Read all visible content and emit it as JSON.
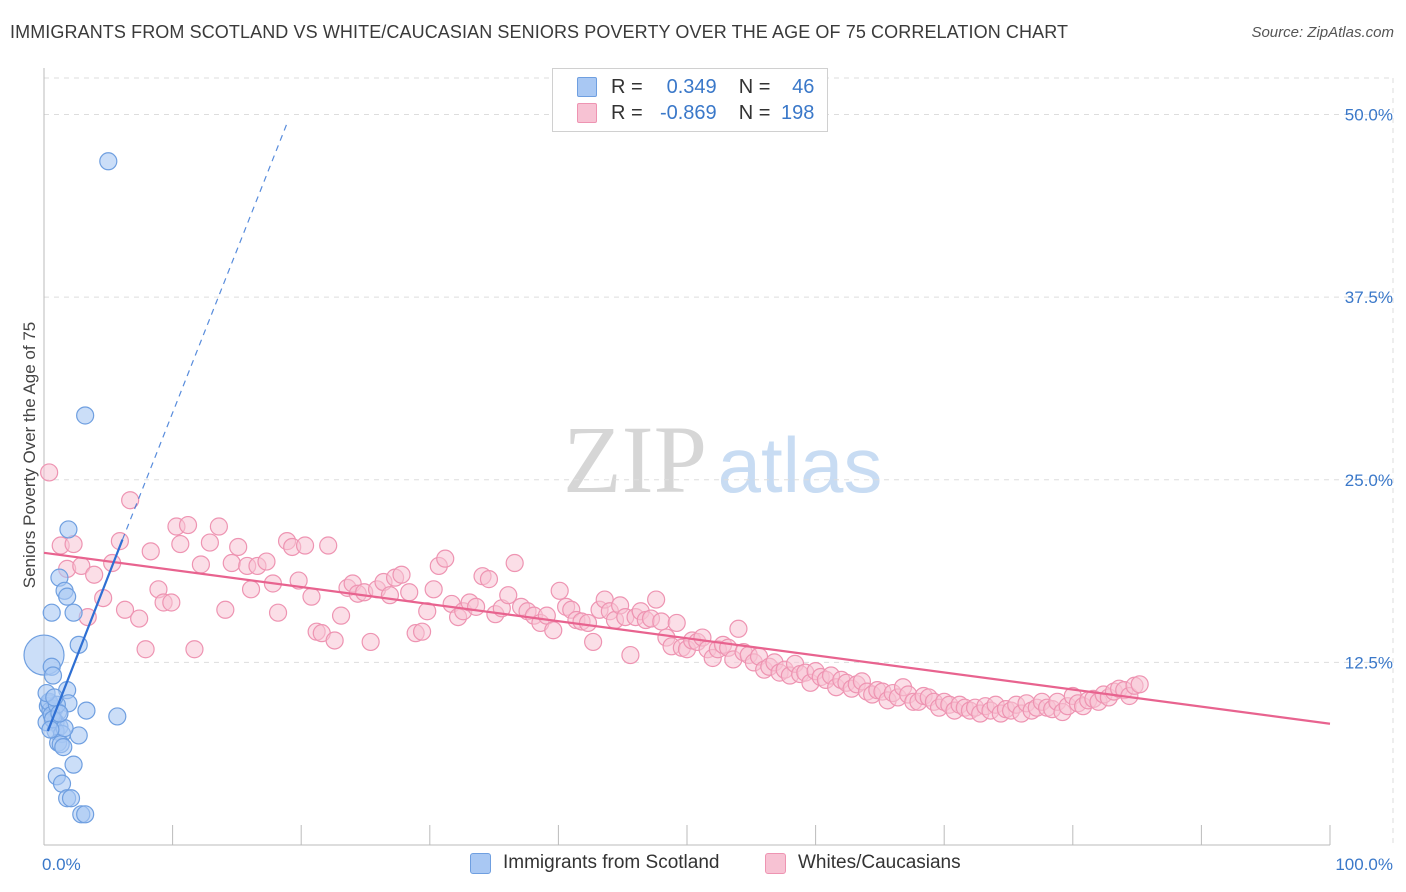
{
  "title": "IMMIGRANTS FROM SCOTLAND VS WHITE/CAUCASIAN SENIORS POVERTY OVER THE AGE OF 75 CORRELATION CHART",
  "source": "Source: ZipAtlas.com",
  "watermark": {
    "zip": "ZIP",
    "atlas": "atlas"
  },
  "legend_top": {
    "r_label": "R =",
    "n_label": "N =",
    "rows": [
      {
        "r": "0.349",
        "n": "46",
        "color": "#7aaef0"
      },
      {
        "r": "-0.869",
        "n": "198",
        "color": "#f29ab8"
      }
    ]
  },
  "colors": {
    "blue_fill": "#a9c8f3",
    "blue_stroke": "#6f9fe0",
    "blue_line": "#2e6fd3",
    "pink_fill": "#f7c2d3",
    "pink_stroke": "#ee94b2",
    "pink_line": "#e8638f",
    "tick_text": "#3a78c9",
    "grid": "#dddddd"
  },
  "chart_data": {
    "type": "scatter",
    "title": "IMMIGRANTS FROM SCOTLAND VS WHITE/CAUCASIAN SENIORS POVERTY OVER THE AGE OF 75 CORRELATION CHART",
    "xlabel": "",
    "ylabel": "Seniors Poverty Over the Age of 75",
    "xlim": [
      0,
      100
    ],
    "ylim": [
      0,
      52.5
    ],
    "x_tick_labels": [
      "0.0%",
      "100.0%"
    ],
    "y_ticks": [
      12.5,
      25.0,
      37.5,
      50.0
    ],
    "y_tick_labels": [
      "12.5%",
      "25.0%",
      "37.5%",
      "50.0%"
    ],
    "grid": true,
    "series": [
      {
        "name": "Immigrants from Scotland",
        "color": "#a9c8f3",
        "points": [
          [
            5.0,
            46.8
          ],
          [
            3.2,
            29.4
          ],
          [
            1.9,
            21.6
          ],
          [
            1.2,
            18.3
          ],
          [
            1.6,
            17.4
          ],
          [
            1.8,
            17.0
          ],
          [
            0.6,
            15.9
          ],
          [
            2.3,
            15.9
          ],
          [
            2.7,
            13.7
          ],
          [
            0.0,
            13.0
          ],
          [
            0.6,
            12.2
          ],
          [
            0.7,
            11.6
          ],
          [
            1.8,
            10.6
          ],
          [
            1.9,
            9.7
          ],
          [
            0.4,
            9.7
          ],
          [
            0.3,
            9.5
          ],
          [
            0.8,
            9.3
          ],
          [
            0.5,
            9.2
          ],
          [
            1.1,
            9.1
          ],
          [
            3.3,
            9.2
          ],
          [
            5.7,
            8.8
          ],
          [
            0.9,
            8.4
          ],
          [
            1.2,
            8.1
          ],
          [
            0.2,
            8.4
          ],
          [
            0.9,
            7.8
          ],
          [
            1.4,
            7.6
          ],
          [
            2.7,
            7.5
          ],
          [
            1.1,
            7.0
          ],
          [
            1.3,
            6.9
          ],
          [
            1.5,
            6.7
          ],
          [
            2.3,
            5.5
          ],
          [
            1.0,
            4.7
          ],
          [
            1.4,
            4.2
          ],
          [
            1.8,
            3.2
          ],
          [
            2.1,
            3.2
          ],
          [
            2.9,
            2.1
          ],
          [
            3.2,
            2.1
          ],
          [
            0.4,
            9.8
          ],
          [
            0.6,
            8.9
          ],
          [
            1.0,
            9.6
          ],
          [
            0.2,
            10.4
          ],
          [
            0.7,
            8.6
          ],
          [
            1.6,
            8.0
          ],
          [
            0.5,
            7.9
          ],
          [
            1.2,
            9.0
          ],
          [
            0.8,
            10.1
          ]
        ],
        "trendline": {
          "x": [
            0.3,
            6.1
          ],
          "y": [
            7.8,
            20.9
          ],
          "extended_to": [
            18.9,
            49.4
          ]
        }
      },
      {
        "name": "Whites/Caucasians",
        "color": "#f7c2d3",
        "points": [
          [
            0.4,
            25.5
          ],
          [
            1.3,
            20.5
          ],
          [
            1.8,
            18.9
          ],
          [
            2.3,
            20.6
          ],
          [
            2.9,
            19.1
          ],
          [
            3.4,
            15.6
          ],
          [
            3.9,
            18.5
          ],
          [
            4.6,
            16.9
          ],
          [
            5.3,
            19.3
          ],
          [
            5.9,
            20.8
          ],
          [
            6.3,
            16.1
          ],
          [
            6.7,
            23.6
          ],
          [
            7.4,
            15.5
          ],
          [
            7.9,
            13.4
          ],
          [
            8.3,
            20.1
          ],
          [
            8.9,
            17.5
          ],
          [
            9.3,
            16.6
          ],
          [
            9.9,
            16.6
          ],
          [
            10.3,
            21.8
          ],
          [
            10.6,
            20.6
          ],
          [
            11.2,
            21.9
          ],
          [
            11.7,
            13.4
          ],
          [
            12.2,
            19.2
          ],
          [
            12.9,
            20.7
          ],
          [
            13.6,
            21.8
          ],
          [
            14.1,
            16.1
          ],
          [
            14.6,
            19.3
          ],
          [
            15.1,
            20.4
          ],
          [
            15.8,
            19.1
          ],
          [
            16.1,
            17.5
          ],
          [
            16.6,
            19.1
          ],
          [
            17.3,
            19.4
          ],
          [
            17.8,
            17.9
          ],
          [
            18.2,
            15.9
          ],
          [
            18.9,
            20.8
          ],
          [
            19.3,
            20.4
          ],
          [
            19.8,
            18.1
          ],
          [
            20.3,
            20.5
          ],
          [
            20.8,
            17.0
          ],
          [
            21.2,
            14.6
          ],
          [
            21.6,
            14.5
          ],
          [
            22.1,
            20.5
          ],
          [
            22.6,
            14.0
          ],
          [
            23.1,
            15.7
          ],
          [
            23.6,
            17.6
          ],
          [
            24.0,
            17.9
          ],
          [
            24.4,
            17.2
          ],
          [
            24.9,
            17.3
          ],
          [
            25.4,
            13.9
          ],
          [
            25.9,
            17.5
          ],
          [
            26.4,
            18.0
          ],
          [
            26.9,
            17.1
          ],
          [
            27.3,
            18.3
          ],
          [
            27.8,
            18.5
          ],
          [
            28.4,
            17.3
          ],
          [
            28.9,
            14.5
          ],
          [
            29.4,
            14.6
          ],
          [
            29.8,
            16.0
          ],
          [
            30.3,
            17.5
          ],
          [
            30.7,
            19.1
          ],
          [
            31.2,
            19.6
          ],
          [
            31.7,
            16.5
          ],
          [
            32.2,
            15.6
          ],
          [
            32.6,
            16.0
          ],
          [
            33.1,
            16.6
          ],
          [
            33.6,
            16.3
          ],
          [
            34.1,
            18.4
          ],
          [
            34.6,
            18.2
          ],
          [
            35.1,
            15.8
          ],
          [
            35.6,
            16.2
          ],
          [
            36.1,
            17.1
          ],
          [
            36.6,
            19.3
          ],
          [
            37.1,
            16.3
          ],
          [
            37.6,
            16.0
          ],
          [
            38.1,
            15.7
          ],
          [
            38.6,
            15.2
          ],
          [
            39.1,
            15.7
          ],
          [
            39.6,
            14.7
          ],
          [
            40.1,
            17.4
          ],
          [
            40.6,
            16.3
          ],
          [
            41.0,
            16.1
          ],
          [
            41.4,
            15.4
          ],
          [
            41.8,
            15.3
          ],
          [
            42.3,
            15.2
          ],
          [
            42.7,
            13.9
          ],
          [
            43.2,
            16.1
          ],
          [
            43.6,
            16.8
          ],
          [
            44.0,
            16.0
          ],
          [
            44.4,
            15.4
          ],
          [
            44.8,
            16.4
          ],
          [
            45.2,
            15.6
          ],
          [
            45.6,
            13.0
          ],
          [
            46.0,
            15.6
          ],
          [
            46.4,
            16.0
          ],
          [
            46.8,
            15.4
          ],
          [
            47.2,
            15.5
          ],
          [
            47.6,
            16.8
          ],
          [
            48.0,
            15.3
          ],
          [
            48.4,
            14.2
          ],
          [
            48.8,
            13.6
          ],
          [
            49.2,
            15.2
          ],
          [
            49.6,
            13.5
          ],
          [
            50.0,
            13.4
          ],
          [
            50.4,
            14.0
          ],
          [
            50.8,
            13.9
          ],
          [
            51.2,
            14.2
          ],
          [
            51.6,
            13.4
          ],
          [
            52.0,
            12.8
          ],
          [
            52.4,
            13.4
          ],
          [
            52.8,
            13.7
          ],
          [
            53.2,
            13.5
          ],
          [
            53.6,
            12.7
          ],
          [
            54.0,
            14.8
          ],
          [
            54.4,
            13.2
          ],
          [
            54.8,
            13.0
          ],
          [
            55.2,
            12.5
          ],
          [
            55.6,
            12.9
          ],
          [
            56.0,
            12.0
          ],
          [
            56.4,
            12.2
          ],
          [
            56.8,
            12.5
          ],
          [
            57.2,
            11.8
          ],
          [
            57.6,
            12.0
          ],
          [
            58.0,
            11.6
          ],
          [
            58.4,
            12.4
          ],
          [
            58.8,
            11.7
          ],
          [
            59.2,
            11.8
          ],
          [
            59.6,
            11.1
          ],
          [
            60.0,
            11.9
          ],
          [
            60.4,
            11.5
          ],
          [
            60.8,
            11.3
          ],
          [
            61.2,
            11.6
          ],
          [
            61.6,
            10.8
          ],
          [
            62.0,
            11.3
          ],
          [
            62.4,
            11.1
          ],
          [
            62.8,
            10.7
          ],
          [
            63.2,
            11.0
          ],
          [
            63.6,
            11.2
          ],
          [
            64.0,
            10.5
          ],
          [
            64.4,
            10.3
          ],
          [
            64.8,
            10.6
          ],
          [
            65.2,
            10.5
          ],
          [
            65.6,
            9.9
          ],
          [
            66.0,
            10.4
          ],
          [
            66.4,
            10.1
          ],
          [
            66.8,
            10.8
          ],
          [
            67.2,
            10.3
          ],
          [
            67.6,
            9.8
          ],
          [
            68.0,
            9.8
          ],
          [
            68.4,
            10.2
          ],
          [
            68.8,
            10.1
          ],
          [
            69.2,
            9.8
          ],
          [
            69.6,
            9.4
          ],
          [
            70.0,
            9.8
          ],
          [
            70.4,
            9.6
          ],
          [
            70.8,
            9.2
          ],
          [
            71.2,
            9.6
          ],
          [
            71.6,
            9.4
          ],
          [
            72.0,
            9.2
          ],
          [
            72.4,
            9.4
          ],
          [
            72.8,
            9.0
          ],
          [
            73.2,
            9.5
          ],
          [
            73.6,
            9.2
          ],
          [
            74.0,
            9.6
          ],
          [
            74.4,
            9.0
          ],
          [
            74.8,
            9.3
          ],
          [
            75.2,
            9.2
          ],
          [
            75.6,
            9.6
          ],
          [
            76.0,
            9.0
          ],
          [
            76.4,
            9.7
          ],
          [
            76.8,
            9.2
          ],
          [
            77.2,
            9.4
          ],
          [
            77.6,
            9.8
          ],
          [
            78.0,
            9.4
          ],
          [
            78.4,
            9.3
          ],
          [
            78.8,
            9.8
          ],
          [
            79.2,
            9.1
          ],
          [
            79.6,
            9.5
          ],
          [
            80.0,
            10.2
          ],
          [
            80.4,
            9.7
          ],
          [
            80.8,
            9.5
          ],
          [
            81.2,
            9.9
          ],
          [
            81.6,
            10.0
          ],
          [
            82.0,
            9.8
          ],
          [
            82.4,
            10.3
          ],
          [
            82.8,
            10.1
          ],
          [
            83.2,
            10.5
          ],
          [
            83.6,
            10.7
          ],
          [
            84.0,
            10.6
          ],
          [
            84.4,
            10.2
          ],
          [
            84.8,
            10.9
          ],
          [
            85.2,
            11.0
          ]
        ],
        "trendline": {
          "x": [
            0.0,
            100.0
          ],
          "y": [
            20.0,
            8.3
          ]
        }
      }
    ]
  },
  "bottom_legend": [
    {
      "label": "Immigrants from Scotland",
      "color": "#a9c8f3"
    },
    {
      "label": "Whites/Caucasians",
      "color": "#f7c2d3"
    }
  ]
}
